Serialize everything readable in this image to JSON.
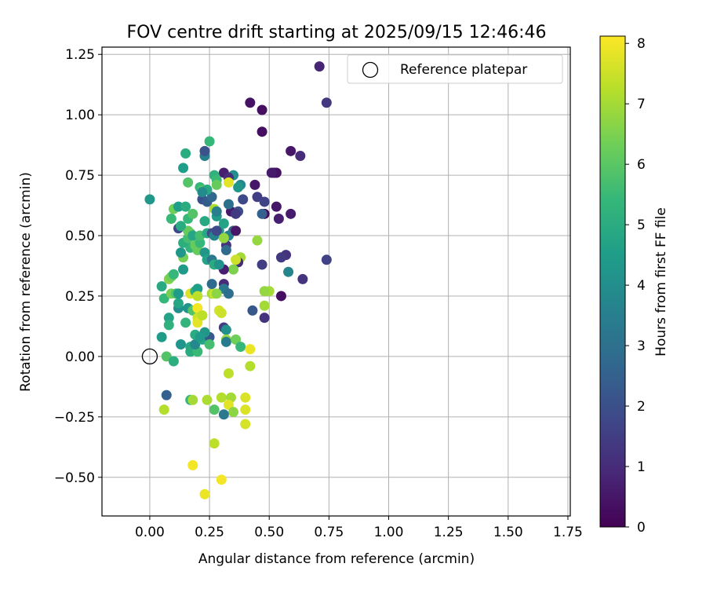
{
  "chart_data": {
    "type": "scatter",
    "title": "FOV centre drift starting at 2025/09/15 12:46:46",
    "xlabel": "Angular distance from reference (arcmin)",
    "ylabel": "Rotation from reference (arcmin)",
    "xlim": [
      -0.2,
      1.76
    ],
    "ylim": [
      -0.66,
      1.28
    ],
    "xticks": [
      0.0,
      0.25,
      0.5,
      0.75,
      1.0,
      1.25,
      1.5,
      1.75
    ],
    "xtick_labels": [
      "0.00",
      "0.25",
      "0.50",
      "0.75",
      "1.00",
      "1.25",
      "1.50",
      "1.75"
    ],
    "yticks": [
      -0.5,
      -0.25,
      0.0,
      0.25,
      0.5,
      0.75,
      1.0,
      1.25
    ],
    "ytick_labels": [
      "−0.50",
      "−0.25",
      "0.00",
      "0.25",
      "0.50",
      "0.75",
      "1.00",
      "1.25"
    ],
    "grid": true,
    "legend": {
      "position": "top-right",
      "entries": [
        "Reference platepar"
      ]
    },
    "reference_point": {
      "x": 0.0,
      "y": 0.0,
      "label": "Reference platepar"
    },
    "colorbar": {
      "label": "Hours from first FF file",
      "min": 0,
      "max": 8.12,
      "ticks": [
        0,
        1,
        2,
        3,
        4,
        5,
        6,
        7,
        8
      ],
      "tick_labels": [
        "0",
        "1",
        "2",
        "3",
        "4",
        "5",
        "6",
        "7",
        "8"
      ],
      "colormap": "viridis"
    },
    "points": [
      {
        "x": 0.71,
        "y": 1.2,
        "h": 0.8
      },
      {
        "x": 0.74,
        "y": 1.05,
        "h": 1.3
      },
      {
        "x": 0.42,
        "y": 1.05,
        "h": 0.4
      },
      {
        "x": 0.47,
        "y": 1.02,
        "h": 0.3
      },
      {
        "x": 0.47,
        "y": 0.93,
        "h": 0.3
      },
      {
        "x": 0.59,
        "y": 0.85,
        "h": 0.5
      },
      {
        "x": 0.63,
        "y": 0.83,
        "h": 1.0
      },
      {
        "x": 0.52,
        "y": 0.76,
        "h": 0.2
      },
      {
        "x": 0.53,
        "y": 0.76,
        "h": 0.4
      },
      {
        "x": 0.51,
        "y": 0.76,
        "h": 0.6
      },
      {
        "x": 0.44,
        "y": 0.71,
        "h": 0.5
      },
      {
        "x": 0.45,
        "y": 0.66,
        "h": 1.5
      },
      {
        "x": 0.48,
        "y": 0.64,
        "h": 1.6
      },
      {
        "x": 0.53,
        "y": 0.62,
        "h": 0.5
      },
      {
        "x": 0.48,
        "y": 0.59,
        "h": 0.2
      },
      {
        "x": 0.59,
        "y": 0.59,
        "h": 0.6
      },
      {
        "x": 0.54,
        "y": 0.57,
        "h": 0.7
      },
      {
        "x": 0.47,
        "y": 0.59,
        "h": 2.5
      },
      {
        "x": 0.57,
        "y": 0.42,
        "h": 1.2
      },
      {
        "x": 0.55,
        "y": 0.41,
        "h": 1.4
      },
      {
        "x": 0.74,
        "y": 0.4,
        "h": 1.6
      },
      {
        "x": 0.47,
        "y": 0.38,
        "h": 1.5
      },
      {
        "x": 0.58,
        "y": 0.35,
        "h": 3.7
      },
      {
        "x": 0.64,
        "y": 0.32,
        "h": 1.2
      },
      {
        "x": 0.55,
        "y": 0.25,
        "h": 0.3
      },
      {
        "x": 0.43,
        "y": 0.19,
        "h": 2.2
      },
      {
        "x": 0.48,
        "y": 0.16,
        "h": 1.2
      },
      {
        "x": 0.5,
        "y": 0.27,
        "h": 7.0
      },
      {
        "x": 0.48,
        "y": 0.27,
        "h": 6.8
      },
      {
        "x": 0.48,
        "y": 0.21,
        "h": 7.0
      },
      {
        "x": 0.45,
        "y": 0.48,
        "h": 6.8
      },
      {
        "x": 0.38,
        "y": 0.71,
        "h": 3.8
      },
      {
        "x": 0.35,
        "y": 0.75,
        "h": 4.0
      },
      {
        "x": 0.31,
        "y": 0.76,
        "h": 0.7
      },
      {
        "x": 0.33,
        "y": 0.74,
        "h": 1.0
      },
      {
        "x": 0.37,
        "y": 0.7,
        "h": 4.3
      },
      {
        "x": 0.34,
        "y": 0.6,
        "h": 0.6
      },
      {
        "x": 0.39,
        "y": 0.65,
        "h": 1.8
      },
      {
        "x": 0.33,
        "y": 0.63,
        "h": 3.0
      },
      {
        "x": 0.37,
        "y": 0.6,
        "h": 2.0
      },
      {
        "x": 0.36,
        "y": 0.59,
        "h": 1.4
      },
      {
        "x": 0.35,
        "y": 0.52,
        "h": 2.5
      },
      {
        "x": 0.36,
        "y": 0.52,
        "h": 7.6
      },
      {
        "x": 0.33,
        "y": 0.5,
        "h": 3.5
      },
      {
        "x": 0.32,
        "y": 0.46,
        "h": 1.2
      },
      {
        "x": 0.32,
        "y": 0.44,
        "h": 2.8
      },
      {
        "x": 0.38,
        "y": 0.41,
        "h": 7.0
      },
      {
        "x": 0.37,
        "y": 0.39,
        "h": 1.0
      },
      {
        "x": 0.36,
        "y": 0.4,
        "h": 7.5
      },
      {
        "x": 0.35,
        "y": 0.36,
        "h": 6.5
      },
      {
        "x": 0.31,
        "y": 0.36,
        "h": 0.7
      },
      {
        "x": 0.31,
        "y": 0.3,
        "h": 1.0
      },
      {
        "x": 0.31,
        "y": 0.28,
        "h": 3.3
      },
      {
        "x": 0.33,
        "y": 0.26,
        "h": 3.0
      },
      {
        "x": 0.31,
        "y": 0.12,
        "h": 1.5
      },
      {
        "x": 0.32,
        "y": 0.11,
        "h": 4.1
      },
      {
        "x": 0.32,
        "y": 0.07,
        "h": 6.8
      },
      {
        "x": 0.32,
        "y": 0.06,
        "h": 3.4
      },
      {
        "x": 0.36,
        "y": 0.07,
        "h": 6.3
      },
      {
        "x": 0.38,
        "y": 0.04,
        "h": 5.4
      },
      {
        "x": 0.42,
        "y": 0.03,
        "h": 7.9
      },
      {
        "x": 0.42,
        "y": -0.04,
        "h": 7.2
      },
      {
        "x": 0.33,
        "y": -0.07,
        "h": 7.3
      },
      {
        "x": 0.3,
        "y": -0.17,
        "h": 7.2
      },
      {
        "x": 0.34,
        "y": -0.17,
        "h": 7.0
      },
      {
        "x": 0.33,
        "y": -0.2,
        "h": 7.8
      },
      {
        "x": 0.4,
        "y": -0.17,
        "h": 7.7
      },
      {
        "x": 0.35,
        "y": -0.23,
        "h": 6.7
      },
      {
        "x": 0.4,
        "y": -0.22,
        "h": 7.7
      },
      {
        "x": 0.31,
        "y": -0.24,
        "h": 3.3
      },
      {
        "x": 0.27,
        "y": -0.22,
        "h": 5.9
      },
      {
        "x": 0.24,
        "y": -0.18,
        "h": 7.1
      },
      {
        "x": 0.4,
        "y": -0.28,
        "h": 7.6
      },
      {
        "x": 0.27,
        "y": -0.36,
        "h": 7.3
      },
      {
        "x": 0.18,
        "y": -0.45,
        "h": 8.0
      },
      {
        "x": 0.3,
        "y": -0.51,
        "h": 8.0
      },
      {
        "x": 0.23,
        "y": -0.57,
        "h": 7.9
      },
      {
        "x": 0.07,
        "y": -0.16,
        "h": 2.5
      },
      {
        "x": 0.06,
        "y": -0.22,
        "h": 7.2
      },
      {
        "x": 0.17,
        "y": -0.18,
        "h": 5.3
      },
      {
        "x": 0.18,
        "y": -0.18,
        "h": 7.0
      },
      {
        "x": 0.05,
        "y": 0.08,
        "h": 4.4
      },
      {
        "x": 0.07,
        "y": 0.0,
        "h": 5.9
      },
      {
        "x": 0.1,
        "y": -0.02,
        "h": 5.1
      },
      {
        "x": 0.13,
        "y": 0.05,
        "h": 4.2
      },
      {
        "x": 0.17,
        "y": 0.02,
        "h": 5.0
      },
      {
        "x": 0.17,
        "y": 0.04,
        "h": 4.9
      },
      {
        "x": 0.2,
        "y": 0.02,
        "h": 5.5
      },
      {
        "x": 0.19,
        "y": 0.05,
        "h": 3.8
      },
      {
        "x": 0.22,
        "y": 0.07,
        "h": 4.8
      },
      {
        "x": 0.25,
        "y": 0.08,
        "h": 2.3
      },
      {
        "x": 0.25,
        "y": 0.05,
        "h": 5.7
      },
      {
        "x": 0.23,
        "y": 0.1,
        "h": 4.3
      },
      {
        "x": 0.19,
        "y": 0.09,
        "h": 5.0
      },
      {
        "x": 0.21,
        "y": 0.08,
        "h": 4.4
      },
      {
        "x": 0.08,
        "y": 0.16,
        "h": 4.7
      },
      {
        "x": 0.08,
        "y": 0.13,
        "h": 5.2
      },
      {
        "x": 0.12,
        "y": 0.2,
        "h": 4.0
      },
      {
        "x": 0.12,
        "y": 0.22,
        "h": 4.8
      },
      {
        "x": 0.15,
        "y": 0.14,
        "h": 5.3
      },
      {
        "x": 0.16,
        "y": 0.2,
        "h": 4.2
      },
      {
        "x": 0.18,
        "y": 0.19,
        "h": 5.9
      },
      {
        "x": 0.2,
        "y": 0.2,
        "h": 8.0
      },
      {
        "x": 0.2,
        "y": 0.16,
        "h": 7.5
      },
      {
        "x": 0.2,
        "y": 0.14,
        "h": 7.8
      },
      {
        "x": 0.22,
        "y": 0.17,
        "h": 7.3
      },
      {
        "x": 0.29,
        "y": 0.19,
        "h": 7.6
      },
      {
        "x": 0.3,
        "y": 0.18,
        "h": 7.5
      },
      {
        "x": 0.06,
        "y": 0.24,
        "h": 5.4
      },
      {
        "x": 0.09,
        "y": 0.26,
        "h": 6.4
      },
      {
        "x": 0.11,
        "y": 0.26,
        "h": 5.8
      },
      {
        "x": 0.12,
        "y": 0.26,
        "h": 4.4
      },
      {
        "x": 0.17,
        "y": 0.26,
        "h": 7.7
      },
      {
        "x": 0.19,
        "y": 0.27,
        "h": 5.1
      },
      {
        "x": 0.2,
        "y": 0.28,
        "h": 4.5
      },
      {
        "x": 0.2,
        "y": 0.25,
        "h": 7.3
      },
      {
        "x": 0.26,
        "y": 0.26,
        "h": 7.0
      },
      {
        "x": 0.27,
        "y": 0.26,
        "h": 7.5
      },
      {
        "x": 0.28,
        "y": 0.26,
        "h": 6.7
      },
      {
        "x": 0.26,
        "y": 0.3,
        "h": 2.8
      },
      {
        "x": 0.05,
        "y": 0.29,
        "h": 4.9
      },
      {
        "x": 0.08,
        "y": 0.32,
        "h": 6.6
      },
      {
        "x": 0.09,
        "y": 0.33,
        "h": 6.3
      },
      {
        "x": 0.1,
        "y": 0.34,
        "h": 5.4
      },
      {
        "x": 0.14,
        "y": 0.36,
        "h": 4.4
      },
      {
        "x": 0.14,
        "y": 0.41,
        "h": 6.4
      },
      {
        "x": 0.13,
        "y": 0.43,
        "h": 4.3
      },
      {
        "x": 0.17,
        "y": 0.45,
        "h": 5.3
      },
      {
        "x": 0.19,
        "y": 0.46,
        "h": 6.2
      },
      {
        "x": 0.2,
        "y": 0.44,
        "h": 6.2
      },
      {
        "x": 0.21,
        "y": 0.47,
        "h": 5.4
      },
      {
        "x": 0.23,
        "y": 0.43,
        "h": 4.3
      },
      {
        "x": 0.24,
        "y": 0.4,
        "h": 4.7
      },
      {
        "x": 0.26,
        "y": 0.4,
        "h": 3.3
      },
      {
        "x": 0.27,
        "y": 0.38,
        "h": 5.0
      },
      {
        "x": 0.29,
        "y": 0.38,
        "h": 4.1
      },
      {
        "x": 0.14,
        "y": 0.47,
        "h": 5.1
      },
      {
        "x": 0.16,
        "y": 0.49,
        "h": 5.7
      },
      {
        "x": 0.17,
        "y": 0.51,
        "h": 5.6
      },
      {
        "x": 0.16,
        "y": 0.52,
        "h": 6.2
      },
      {
        "x": 0.18,
        "y": 0.5,
        "h": 4.8
      },
      {
        "x": 0.21,
        "y": 0.5,
        "h": 5.7
      },
      {
        "x": 0.24,
        "y": 0.51,
        "h": 4.9
      },
      {
        "x": 0.26,
        "y": 0.51,
        "h": 2.0
      },
      {
        "x": 0.27,
        "y": 0.5,
        "h": 3.7
      },
      {
        "x": 0.29,
        "y": 0.52,
        "h": 4.3
      },
      {
        "x": 0.31,
        "y": 0.49,
        "h": 6.8
      },
      {
        "x": 0.36,
        "y": 0.52,
        "h": 0.5
      },
      {
        "x": 0.12,
        "y": 0.53,
        "h": 1.8
      },
      {
        "x": 0.13,
        "y": 0.54,
        "h": 5.0
      },
      {
        "x": 0.09,
        "y": 0.57,
        "h": 5.5
      },
      {
        "x": 0.16,
        "y": 0.57,
        "h": 5.4
      },
      {
        "x": 0.18,
        "y": 0.59,
        "h": 5.9
      },
      {
        "x": 0.23,
        "y": 0.56,
        "h": 4.9
      },
      {
        "x": 0.28,
        "y": 0.58,
        "h": 4.4
      },
      {
        "x": 0.28,
        "y": 0.52,
        "h": 1.8
      },
      {
        "x": 0.31,
        "y": 0.55,
        "h": 4.7
      },
      {
        "x": 0.1,
        "y": 0.61,
        "h": 6.3
      },
      {
        "x": 0.12,
        "y": 0.62,
        "h": 4.5
      },
      {
        "x": 0.15,
        "y": 0.62,
        "h": 5.0
      },
      {
        "x": 0.22,
        "y": 0.65,
        "h": 2.0
      },
      {
        "x": 0.24,
        "y": 0.64,
        "h": 2.4
      },
      {
        "x": 0.26,
        "y": 0.66,
        "h": 2.7
      },
      {
        "x": 0.27,
        "y": 0.61,
        "h": 7.1
      },
      {
        "x": 0.28,
        "y": 0.6,
        "h": 3.5
      },
      {
        "x": 0.0,
        "y": 0.65,
        "h": 4.3
      },
      {
        "x": 0.16,
        "y": 0.72,
        "h": 5.9
      },
      {
        "x": 0.21,
        "y": 0.7,
        "h": 5.4
      },
      {
        "x": 0.22,
        "y": 0.69,
        "h": 5.8
      },
      {
        "x": 0.24,
        "y": 0.69,
        "h": 4.9
      },
      {
        "x": 0.22,
        "y": 0.68,
        "h": 3.9
      },
      {
        "x": 0.27,
        "y": 0.75,
        "h": 5.2
      },
      {
        "x": 0.28,
        "y": 0.73,
        "h": 5.5
      },
      {
        "x": 0.28,
        "y": 0.71,
        "h": 6.2
      },
      {
        "x": 0.33,
        "y": 0.72,
        "h": 7.8
      },
      {
        "x": 0.14,
        "y": 0.78,
        "h": 4.5
      },
      {
        "x": 0.15,
        "y": 0.84,
        "h": 5.0
      },
      {
        "x": 0.23,
        "y": 0.83,
        "h": 3.5
      },
      {
        "x": 0.23,
        "y": 0.85,
        "h": 2.1
      },
      {
        "x": 0.25,
        "y": 0.89,
        "h": 5.4
      }
    ]
  }
}
